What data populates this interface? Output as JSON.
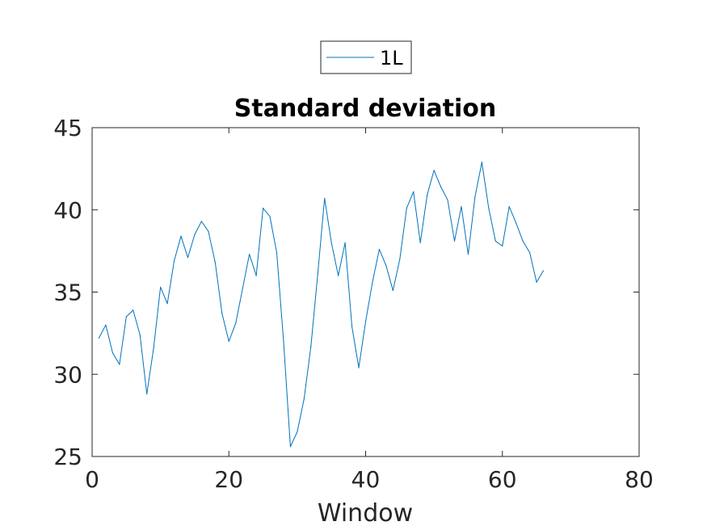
{
  "chart_data": {
    "type": "line",
    "title": "Standard deviation",
    "xlabel": "Window",
    "ylabel": "",
    "xlim": [
      0,
      80
    ],
    "ylim": [
      25,
      45
    ],
    "xticks": [
      0,
      20,
      40,
      60,
      80
    ],
    "yticks": [
      25,
      30,
      35,
      40,
      45
    ],
    "grid": false,
    "legend_position": "top-center",
    "series": [
      {
        "name": "1L",
        "color": "#0072BD",
        "x": [
          1,
          2,
          3,
          4,
          5,
          6,
          7,
          8,
          9,
          10,
          11,
          12,
          13,
          14,
          15,
          16,
          17,
          18,
          19,
          20,
          21,
          22,
          23,
          24,
          25,
          26,
          27,
          28,
          29,
          30,
          31,
          32,
          33,
          34,
          35,
          36,
          37,
          38,
          39,
          40,
          41,
          42,
          43,
          44,
          45,
          46,
          47,
          48,
          49,
          50,
          51,
          52,
          53,
          54,
          55,
          56,
          57,
          58,
          59,
          60,
          61,
          62,
          63,
          64,
          65,
          66
        ],
        "y": [
          32.2,
          33.0,
          31.3,
          30.6,
          33.5,
          33.9,
          32.4,
          28.8,
          31.6,
          35.3,
          34.3,
          36.9,
          38.4,
          37.1,
          38.5,
          39.3,
          38.7,
          36.8,
          33.7,
          32.0,
          33.1,
          35.2,
          37.3,
          36.0,
          40.1,
          39.6,
          37.4,
          32.0,
          25.6,
          26.5,
          28.5,
          31.7,
          36.1,
          40.7,
          38.0,
          36.0,
          38.0,
          32.9,
          30.4,
          33.2,
          35.6,
          37.6,
          36.6,
          35.1,
          37.0,
          40.1,
          41.1,
          38.0,
          40.9,
          42.4,
          41.4,
          40.6,
          38.1,
          40.2,
          37.3,
          40.8,
          42.9,
          40.1,
          38.1,
          37.8,
          40.2,
          39.2,
          38.1,
          37.4,
          35.6,
          36.3
        ]
      }
    ]
  }
}
